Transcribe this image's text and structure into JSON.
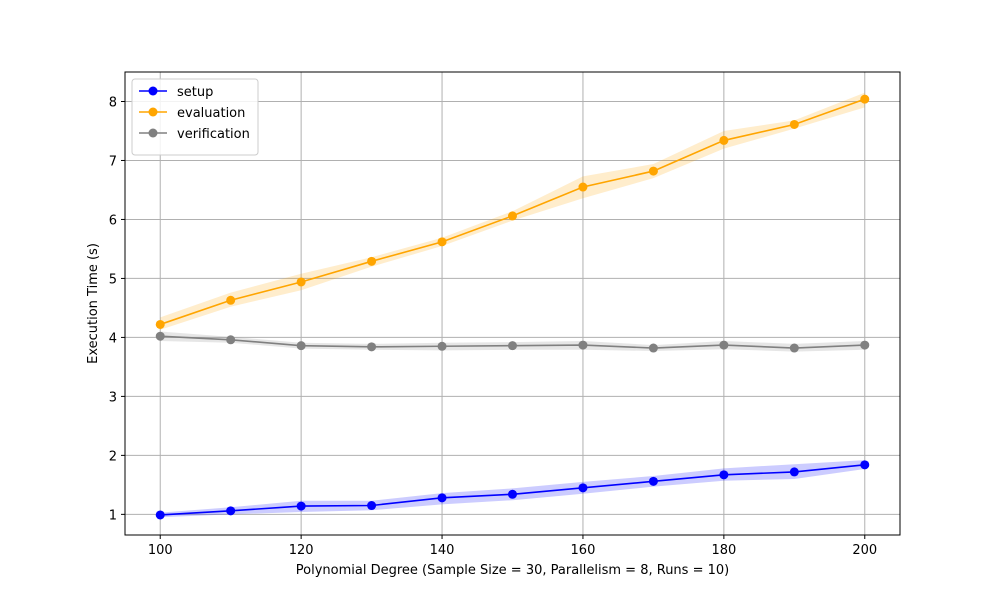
{
  "chart_data": {
    "type": "line",
    "title": "",
    "xlabel": "Polynomial Degree (Sample Size = 30, Parallelism = 8, Runs = 10)",
    "ylabel": "Execution Time (s)",
    "x": [
      100,
      110,
      120,
      130,
      140,
      150,
      160,
      170,
      180,
      190,
      200
    ],
    "xlim": [
      95,
      205
    ],
    "ylim": [
      0.65,
      8.5
    ],
    "xticks": [
      100,
      120,
      140,
      160,
      180,
      200
    ],
    "yticks": [
      1,
      2,
      3,
      4,
      5,
      6,
      7,
      8
    ],
    "grid": true,
    "legend_position": "top-left",
    "series": [
      {
        "name": "setup",
        "color": "#0000ff",
        "values": [
          0.99,
          1.06,
          1.14,
          1.15,
          1.28,
          1.34,
          1.45,
          1.56,
          1.67,
          1.72,
          1.84
        ],
        "lower": [
          0.95,
          1.0,
          1.04,
          1.07,
          1.17,
          1.24,
          1.35,
          1.47,
          1.57,
          1.6,
          1.77
        ],
        "upper": [
          1.03,
          1.12,
          1.23,
          1.23,
          1.36,
          1.44,
          1.55,
          1.65,
          1.78,
          1.85,
          1.92
        ]
      },
      {
        "name": "evaluation",
        "color": "#ffa500",
        "values": [
          4.22,
          4.63,
          4.94,
          5.29,
          5.62,
          6.06,
          6.55,
          6.82,
          7.34,
          7.61,
          8.04
        ],
        "lower": [
          4.13,
          4.52,
          4.8,
          5.2,
          5.55,
          5.98,
          6.36,
          6.7,
          7.2,
          7.54,
          7.9
        ],
        "upper": [
          4.34,
          4.76,
          5.08,
          5.36,
          5.69,
          6.14,
          6.73,
          6.94,
          7.5,
          7.68,
          8.15
        ]
      },
      {
        "name": "verification",
        "color": "#808080",
        "values": [
          4.02,
          3.96,
          3.86,
          3.84,
          3.85,
          3.86,
          3.87,
          3.82,
          3.87,
          3.82,
          3.87
        ],
        "lower": [
          3.94,
          3.91,
          3.81,
          3.79,
          3.78,
          3.79,
          3.79,
          3.77,
          3.8,
          3.76,
          3.79
        ],
        "upper": [
          4.1,
          4.01,
          3.91,
          3.89,
          3.91,
          3.92,
          3.94,
          3.87,
          3.94,
          3.89,
          3.94
        ]
      }
    ]
  }
}
